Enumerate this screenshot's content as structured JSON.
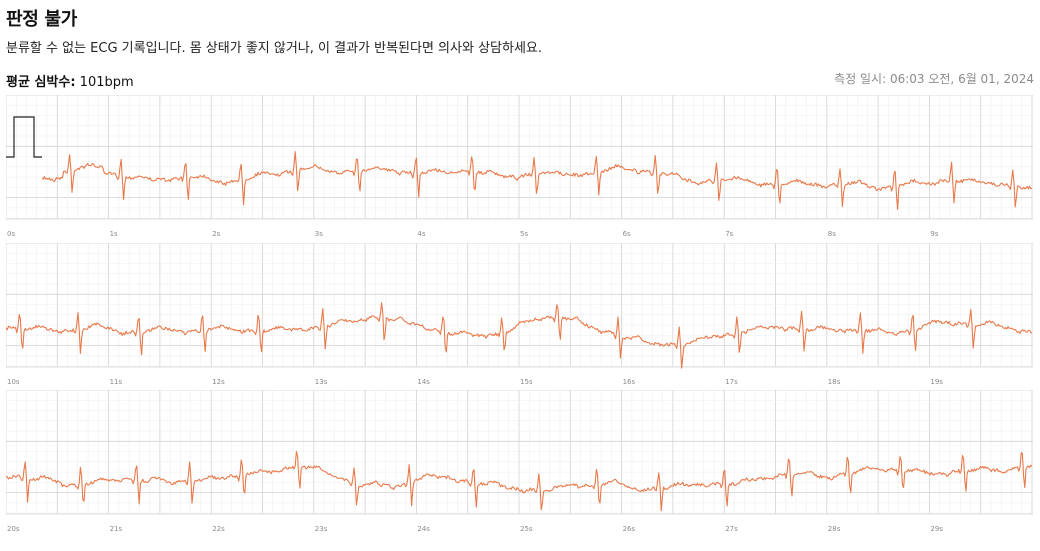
{
  "header": {
    "title": "판정 불가",
    "description": "분류할 수 없는 ECG 기록입니다. 몸 상태가 좋지 않거나, 이 결과가 반복된다면 의사와 상담하세요.",
    "heart_rate_label": "평균 심박수:",
    "heart_rate_value": "101bpm",
    "recorded_at": "측정 일시: 06:03 오전, 6월 01, 2024"
  },
  "ecg": {
    "strips": [
      {
        "ticks": [
          "0s",
          "1s",
          "2s",
          "3s",
          "4s",
          "5s",
          "6s",
          "7s",
          "8s",
          "9s"
        ]
      },
      {
        "ticks": [
          "10s",
          "11s",
          "12s",
          "13s",
          "14s",
          "15s",
          "16s",
          "17s",
          "18s",
          "19s"
        ]
      },
      {
        "ticks": [
          "20s",
          "21s",
          "22s",
          "23s",
          "24s",
          "25s",
          "26s",
          "27s",
          "28s",
          "29s"
        ]
      }
    ],
    "trace_color": "#e8794a",
    "grid_minor_color": "#ececec",
    "grid_major_color": "#d2d2d2",
    "calibration_color": "#222222"
  }
}
